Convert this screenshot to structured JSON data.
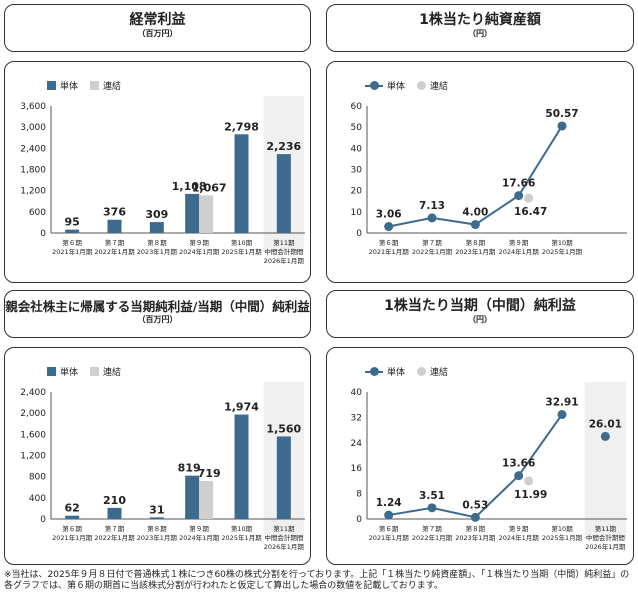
{
  "charts": [
    {
      "id": "c1",
      "title": "経常利益",
      "unit": "（百万円）",
      "legend": [
        {
          "label": "単体",
          "color": "#3d6b8e"
        },
        {
          "label": "連結",
          "color": "#cfcfcf"
        }
      ],
      "chart_data": {
        "type": "bar",
        "categories": [
          {
            "period": "第６期",
            "date": "2021年1月期"
          },
          {
            "period": "第７期",
            "date": "2022年1月期"
          },
          {
            "period": "第８期",
            "date": "2023年1月期"
          },
          {
            "period": "第９期",
            "date": "2024年1月期"
          },
          {
            "period": "第10期",
            "date": "2025年1月期"
          },
          {
            "period": "第11期",
            "date": "中間会計期間",
            "date2": "2026年1月期"
          }
        ],
        "series": [
          {
            "name": "単体",
            "values": [
              95,
              376,
              309,
              1108,
              2798,
              2236
            ],
            "labels": [
              "95",
              "376",
              "309",
              "1,108",
              "2,798",
              "2,236"
            ]
          },
          {
            "name": "連結",
            "values": [
              null,
              null,
              null,
              1067,
              null,
              null
            ],
            "labels": [
              "",
              "",
              "",
              "1,067",
              "",
              ""
            ]
          }
        ],
        "yticks": [
          0,
          600,
          1200,
          1800,
          2400,
          3000,
          3600
        ],
        "ytick_labels": [
          "0",
          "600",
          "1,200",
          "1,800",
          "2,400",
          "3,000",
          "3,600"
        ],
        "ylim": [
          0,
          3600
        ],
        "highlight_last": true
      }
    },
    {
      "id": "c2",
      "title": "1株当たり純資産額",
      "unit": "（円）",
      "legend": [
        {
          "label": "単体",
          "color": "#3d6b8e"
        },
        {
          "label": "連結",
          "color": "#cfcfcf"
        }
      ],
      "chart_data": {
        "type": "line",
        "categories": [
          {
            "period": "第６期",
            "date": "2021年1月期"
          },
          {
            "period": "第７期",
            "date": "2022年1月期"
          },
          {
            "period": "第８期",
            "date": "2023年1月期"
          },
          {
            "period": "第９期",
            "date": "2024年1月期"
          },
          {
            "period": "第10期",
            "date": "2025年1月期"
          }
        ],
        "series": [
          {
            "name": "単体",
            "values": [
              3.06,
              7.13,
              4.0,
              17.66,
              50.57
            ],
            "labels": [
              "3.06",
              "7.13",
              "4.00",
              "17.66",
              "50.57"
            ]
          },
          {
            "name": "連結",
            "values": [
              null,
              null,
              null,
              16.47,
              null
            ],
            "labels": [
              "",
              "",
              "",
              "16.47",
              ""
            ]
          }
        ],
        "yticks": [
          0,
          10,
          20,
          30,
          40,
          50,
          60
        ],
        "ytick_labels": [
          "0",
          "10",
          "20",
          "30",
          "40",
          "50",
          "60"
        ],
        "ylim": [
          0,
          60
        ],
        "highlight_last": false
      }
    },
    {
      "id": "c3",
      "title": "親会社株主に帰属する当期純利益/当期（中間）純利益",
      "unit": "（百万円）",
      "legend": [
        {
          "label": "単体",
          "color": "#3d6b8e"
        },
        {
          "label": "連結",
          "color": "#cfcfcf"
        }
      ],
      "chart_data": {
        "type": "bar",
        "categories": [
          {
            "period": "第６期",
            "date": "2021年1月期"
          },
          {
            "period": "第７期",
            "date": "2022年1月期"
          },
          {
            "period": "第８期",
            "date": "2023年1月期"
          },
          {
            "period": "第９期",
            "date": "2024年1月期"
          },
          {
            "period": "第10期",
            "date": "2025年1月期"
          },
          {
            "period": "第11期",
            "date": "中間会計期間",
            "date2": "2026年1月期"
          }
        ],
        "series": [
          {
            "name": "単体",
            "values": [
              62,
              210,
              31,
              819,
              1974,
              1560
            ],
            "labels": [
              "62",
              "210",
              "31",
              "819",
              "1,974",
              "1,560"
            ]
          },
          {
            "name": "連結",
            "values": [
              null,
              null,
              null,
              719,
              null,
              null
            ],
            "labels": [
              "",
              "",
              "",
              "719",
              "",
              ""
            ]
          }
        ],
        "yticks": [
          0,
          400,
          800,
          1200,
          1600,
          2000,
          2400
        ],
        "ytick_labels": [
          "0",
          "400",
          "800",
          "1,200",
          "1,600",
          "2,000",
          "2,400"
        ],
        "ylim": [
          0,
          2400
        ],
        "highlight_last": true
      }
    },
    {
      "id": "c4",
      "title": "1株当たり当期（中間）純利益",
      "unit": "（円）",
      "legend": [
        {
          "label": "単体",
          "color": "#3d6b8e"
        },
        {
          "label": "連結",
          "color": "#cfcfcf"
        }
      ],
      "chart_data": {
        "type": "line",
        "categories": [
          {
            "period": "第６期",
            "date": "2021年1月期"
          },
          {
            "period": "第７期",
            "date": "2022年1月期"
          },
          {
            "period": "第８期",
            "date": "2023年1月期"
          },
          {
            "period": "第９期",
            "date": "2024年1月期"
          },
          {
            "period": "第10期",
            "date": "2025年1月期"
          },
          {
            "period": "第11期",
            "date": "中間会計期間",
            "date2": "2026年1月期"
          }
        ],
        "series": [
          {
            "name": "単体",
            "values": [
              1.24,
              3.51,
              0.53,
              13.66,
              32.91,
              26.01
            ],
            "labels": [
              "1.24",
              "3.51",
              "0.53",
              "13.66",
              "32.91",
              "26.01"
            ],
            "connect_until": 4
          },
          {
            "name": "連結",
            "values": [
              null,
              null,
              null,
              11.99,
              null,
              null
            ],
            "labels": [
              "",
              "",
              "",
              "11.99",
              "",
              ""
            ]
          }
        ],
        "yticks": [
          0,
          8,
          16,
          24,
          32,
          40
        ],
        "ytick_labels": [
          "0",
          "8",
          "16",
          "24",
          "32",
          "40"
        ],
        "ylim": [
          0,
          40
        ],
        "highlight_last": true
      }
    }
  ],
  "footnote": "※当社は、2025年９月８日付で普通株式１株につき60株の株式分割を行っております。上記「１株当たり純資産額」、「１株当たり当期（中間）純利益」の各グラフでは、第６期の期首に当該株式分割が行われたと仮定して算出した場合の数値を記載しております。",
  "colors": {
    "single": "#3d6b8e",
    "consolidated": "#cfcfcf",
    "highlight": "#f0f0f0"
  }
}
